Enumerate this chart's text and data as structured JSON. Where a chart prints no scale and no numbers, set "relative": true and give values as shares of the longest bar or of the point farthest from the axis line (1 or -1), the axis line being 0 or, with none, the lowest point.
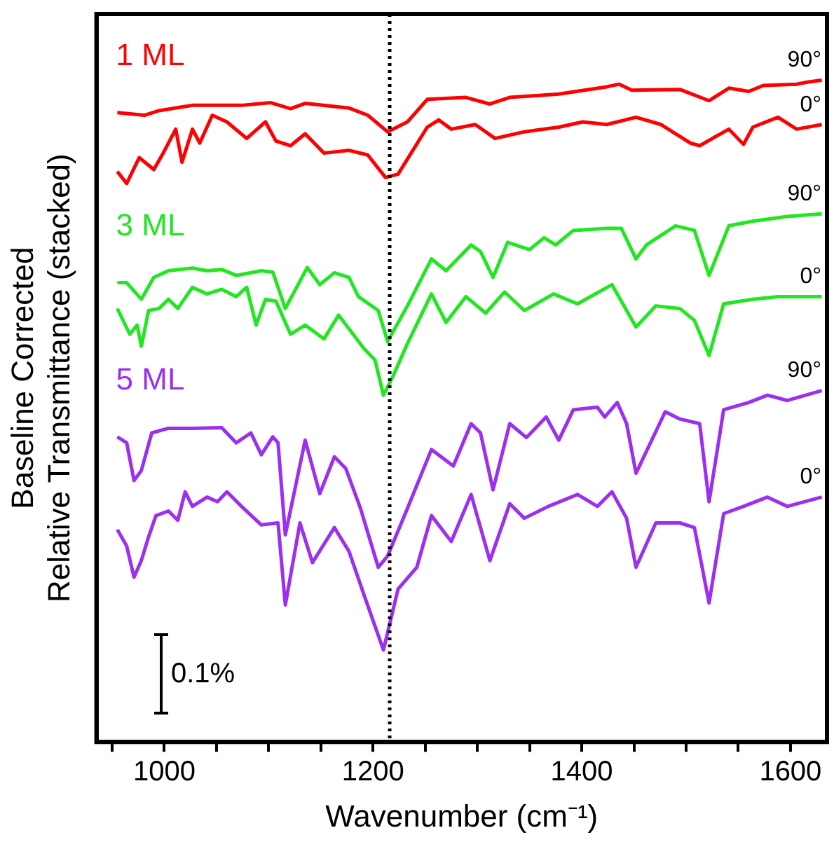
{
  "chart_data": {
    "type": "line",
    "relative": true,
    "xlabel": "Wavenumber (cm⁻¹)",
    "ylabel": "Baseline Corrected\nRelative Transmittance (stacked)",
    "xlim": [
      935,
      1635
    ],
    "xticks": [
      {
        "value": 950,
        "label": null
      },
      1000,
      {
        "value": 1050,
        "label": null
      },
      {
        "value": 1100,
        "label": null
      },
      {
        "value": 1150,
        "label": null
      },
      1200,
      {
        "value": 1250,
        "label": null
      },
      {
        "value": 1300,
        "label": null
      },
      {
        "value": 1350,
        "label": null
      },
      1400,
      {
        "value": 1450,
        "label": null
      },
      {
        "value": 1500,
        "label": null
      },
      {
        "value": 1550,
        "label": null
      },
      1600
    ],
    "grid": false,
    "legend": false,
    "marker": "none",
    "line_style": "solid",
    "ref_lines": [
      {
        "axis": "x",
        "value": 1216,
        "color": "#000000",
        "line_style": "dotted"
      }
    ],
    "annotations": [
      "1 ML",
      "3 ML",
      "5 ML",
      "0.1%"
    ],
    "series": [
      {
        "name": "90°",
        "color": "#ff0000",
        "x": [
          955,
          981,
          995,
          1027,
          1074,
          1102,
          1121,
          1135,
          1177,
          1195,
          1214,
          1233,
          1252,
          1289,
          1312,
          1331,
          1378,
          1424,
          1436,
          1448,
          1494,
          1522,
          1541,
          1560,
          1574,
          1606,
          1616,
          1630
        ],
        "values": [
          0.951,
          0.947,
          0.954,
          0.962,
          0.962,
          0.966,
          0.957,
          0.965,
          0.958,
          0.947,
          0.922,
          0.937,
          0.971,
          0.974,
          0.964,
          0.974,
          0.979,
          0.99,
          0.994,
          0.985,
          0.986,
          0.969,
          0.988,
          0.983,
          0.992,
          0.994,
          0.997,
          1
        ]
      },
      {
        "name": "0°",
        "color": "#ff0000",
        "x": [
          955,
          964,
          976,
          990,
          999,
          1011,
          1017,
          1027,
          1034,
          1046,
          1060,
          1079,
          1097,
          1107,
          1121,
          1135,
          1153,
          1177,
          1195,
          1212,
          1224,
          1252,
          1263,
          1275,
          1298,
          1317,
          1345,
          1378,
          1401,
          1424,
          1452,
          1476,
          1504,
          1513,
          1541,
          1555,
          1564,
          1588,
          1606,
          1630
        ],
        "values": [
          0.862,
          0.844,
          0.883,
          0.865,
          0.89,
          0.926,
          0.876,
          0.926,
          0.905,
          0.947,
          0.937,
          0.912,
          0.937,
          0.908,
          0.901,
          0.919,
          0.89,
          0.894,
          0.887,
          0.853,
          0.858,
          0.929,
          0.94,
          0.926,
          0.933,
          0.912,
          0.922,
          0.929,
          0.937,
          0.933,
          0.944,
          0.933,
          0.905,
          0.901,
          0.926,
          0.903,
          0.929,
          0.944,
          0.926,
          0.933
        ]
      },
      {
        "name": "90°",
        "color": "#22e622",
        "x": [
          955,
          964,
          978,
          990,
          1004,
          1027,
          1041,
          1055,
          1069,
          1093,
          1104,
          1116,
          1137,
          1149,
          1163,
          1177,
          1186,
          1205,
          1214,
          1233,
          1256,
          1270,
          1294,
          1303,
          1315,
          1329,
          1350,
          1364,
          1375,
          1392,
          1424,
          1438,
          1452,
          1462,
          1490,
          1508,
          1522,
          1541,
          1564,
          1597,
          1630
        ],
        "values": [
          0.694,
          0.694,
          0.669,
          0.702,
          0.712,
          0.716,
          0.712,
          0.714,
          0.705,
          0.712,
          0.71,
          0.655,
          0.717,
          0.691,
          0.709,
          0.702,
          0.673,
          0.652,
          0.605,
          0.659,
          0.73,
          0.712,
          0.751,
          0.741,
          0.702,
          0.755,
          0.744,
          0.762,
          0.751,
          0.773,
          0.776,
          0.776,
          0.73,
          0.751,
          0.78,
          0.773,
          0.705,
          0.78,
          0.787,
          0.794,
          0.798
        ]
      },
      {
        "name": "0°",
        "color": "#22e622",
        "x": [
          955,
          967,
          974,
          978,
          985,
          995,
          1004,
          1013,
          1027,
          1041,
          1055,
          1069,
          1079,
          1088,
          1097,
          1107,
          1121,
          1135,
          1153,
          1167,
          1181,
          1191,
          1202,
          1210,
          1219,
          1233,
          1256,
          1270,
          1289,
          1308,
          1326,
          1345,
          1373,
          1396,
          1429,
          1452,
          1471,
          1494,
          1508,
          1522,
          1536,
          1564,
          1588,
          1630
        ],
        "values": [
          0.655,
          0.616,
          0.63,
          0.598,
          0.652,
          0.655,
          0.669,
          0.655,
          0.687,
          0.677,
          0.684,
          0.673,
          0.687,
          0.63,
          0.669,
          0.666,
          0.616,
          0.63,
          0.609,
          0.645,
          0.616,
          0.595,
          0.577,
          0.524,
          0.552,
          0.602,
          0.677,
          0.634,
          0.673,
          0.648,
          0.68,
          0.652,
          0.677,
          0.662,
          0.691,
          0.627,
          0.659,
          0.655,
          0.637,
          0.584,
          0.662,
          0.669,
          0.673,
          0.673
        ]
      },
      {
        "name": "90°",
        "color": "#9b30f0",
        "x": [
          955,
          964,
          971,
          978,
          988,
          1004,
          1027,
          1055,
          1069,
          1083,
          1093,
          1104,
          1109,
          1116,
          1135,
          1149,
          1163,
          1174,
          1188,
          1205,
          1214,
          1233,
          1256,
          1277,
          1294,
          1303,
          1315,
          1331,
          1347,
          1366,
          1378,
          1392,
          1415,
          1422,
          1434,
          1443,
          1452,
          1480,
          1494,
          1513,
          1522,
          1536,
          1560,
          1578,
          1597,
          1630
        ],
        "values": [
          0.461,
          0.452,
          0.395,
          0.41,
          0.467,
          0.474,
          0.474,
          0.475,
          0.452,
          0.467,
          0.434,
          0.461,
          0.452,
          0.313,
          0.456,
          0.375,
          0.431,
          0.413,
          0.353,
          0.264,
          0.281,
          0.353,
          0.442,
          0.417,
          0.481,
          0.467,
          0.381,
          0.481,
          0.46,
          0.491,
          0.456,
          0.502,
          0.506,
          0.491,
          0.513,
          0.481,
          0.406,
          0.499,
          0.488,
          0.481,
          0.363,
          0.502,
          0.513,
          0.524,
          0.516,
          0.531
        ]
      },
      {
        "name": "0°",
        "color": "#9b30f0",
        "x": [
          955,
          964,
          971,
          978,
          985,
          992,
          1004,
          1013,
          1020,
          1027,
          1041,
          1051,
          1060,
          1074,
          1093,
          1109,
          1116,
          1130,
          1142,
          1163,
          1177,
          1191,
          1210,
          1224,
          1242,
          1256,
          1275,
          1294,
          1312,
          1331,
          1345,
          1368,
          1396,
          1415,
          1429,
          1443,
          1452,
          1471,
          1494,
          1508,
          1522,
          1536,
          1555,
          1578,
          1597,
          1630
        ],
        "values": [
          0.321,
          0.296,
          0.249,
          0.274,
          0.31,
          0.342,
          0.349,
          0.335,
          0.378,
          0.356,
          0.37,
          0.363,
          0.378,
          0.356,
          0.328,
          0.331,
          0.207,
          0.331,
          0.271,
          0.324,
          0.288,
          0.224,
          0.139,
          0.231,
          0.264,
          0.342,
          0.303,
          0.374,
          0.274,
          0.36,
          0.338,
          0.356,
          0.374,
          0.356,
          0.378,
          0.338,
          0.264,
          0.331,
          0.331,
          0.324,
          0.21,
          0.345,
          0.356,
          0.37,
          0.356,
          0.37
        ]
      }
    ]
  }
}
